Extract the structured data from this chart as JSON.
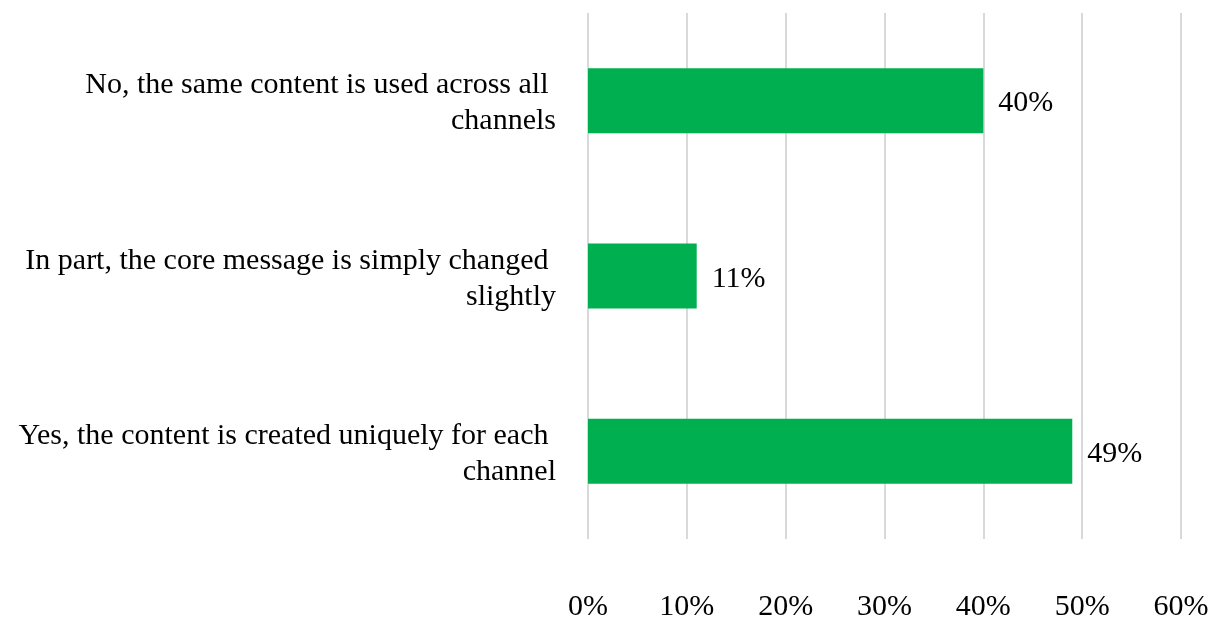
{
  "chart_data": {
    "type": "bar",
    "orientation": "horizontal",
    "categories": [
      "No, the same content is used across all channels",
      "In part, the core message is simply changed slightly",
      "Yes, the content is created uniquely for each channel"
    ],
    "values": [
      40,
      11,
      49
    ],
    "color": "#00b050",
    "value_labels": [
      "40%",
      "11%",
      "49%"
    ],
    "xlim": [
      0,
      60
    ],
    "xticks": [
      {
        "value": 0,
        "label": "0%"
      },
      {
        "value": 10,
        "label": "10%"
      },
      {
        "value": 20,
        "label": "20%"
      },
      {
        "value": 30,
        "label": "30%"
      },
      {
        "value": 40,
        "label": "40%"
      },
      {
        "value": 50,
        "label": "50%"
      },
      {
        "value": 60,
        "label": "60%"
      }
    ],
    "grid": "x"
  }
}
